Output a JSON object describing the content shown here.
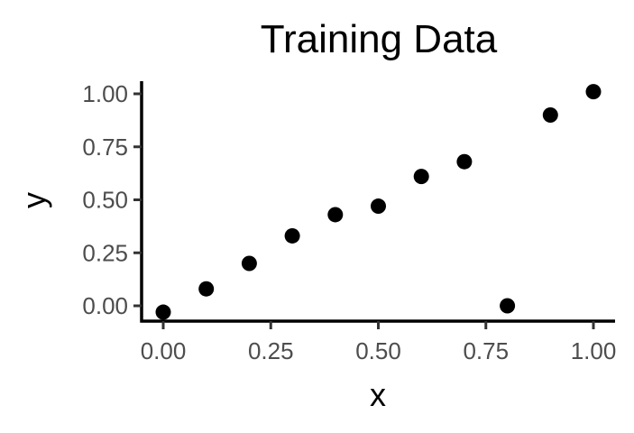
{
  "chart_data": {
    "type": "scatter",
    "title": "Training Data",
    "xlabel": "x",
    "ylabel": "y",
    "xlim": [
      -0.05,
      1.05
    ],
    "ylim": [
      -0.07,
      1.05
    ],
    "x_ticks": [
      0.0,
      0.25,
      0.5,
      0.75,
      1.0
    ],
    "x_tick_labels": [
      "0.00",
      "0.25",
      "0.50",
      "0.75",
      "1.00"
    ],
    "y_ticks": [
      0.0,
      0.25,
      0.5,
      0.75,
      1.0
    ],
    "y_tick_labels": [
      "0.00",
      "0.25",
      "0.50",
      "0.75",
      "1.00"
    ],
    "grid": false,
    "legend": "none",
    "point_color": "#000000",
    "x": [
      0.0,
      0.1,
      0.2,
      0.3,
      0.4,
      0.5,
      0.6,
      0.7,
      0.8,
      0.9,
      1.0
    ],
    "y": [
      -0.03,
      0.08,
      0.2,
      0.33,
      0.43,
      0.47,
      0.61,
      0.68,
      0.0,
      0.9,
      1.01
    ]
  }
}
